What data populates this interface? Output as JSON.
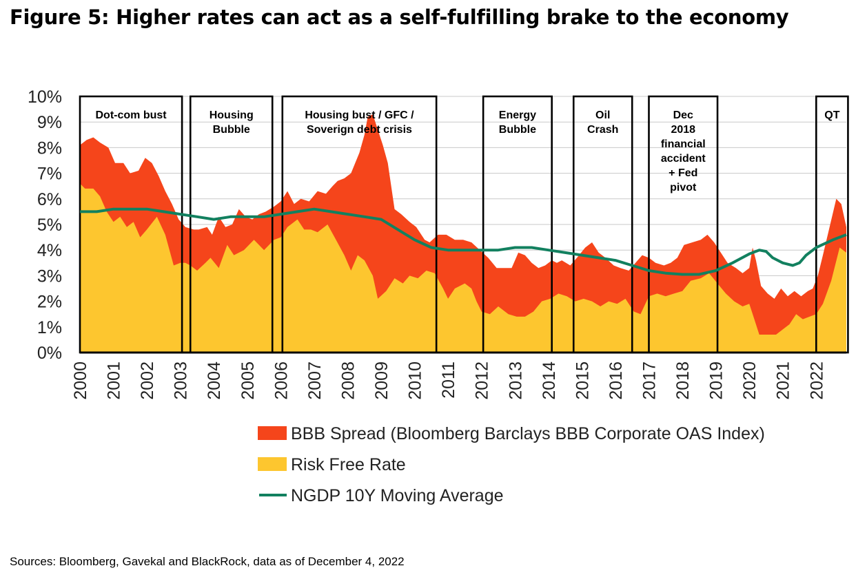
{
  "title": "Figure 5: Higher rates can act as a self-fulfilling brake to the economy",
  "sources": "Sources: Bloomberg, Gavekal and BlackRock, data as of December 4, 2022",
  "colors": {
    "spread": "#F5451B",
    "risk_free": "#FDC62F",
    "ngdp": "#12805F",
    "grid": "#c8c8c8",
    "box": "#000000"
  },
  "chart_data": {
    "type": "area",
    "title": "Figure 5: Higher rates can act as a self-fulfilling brake to the economy",
    "ylim": [
      0,
      10
    ],
    "xlim": [
      2000,
      2022.9
    ],
    "y_ticks": [
      {
        "value": 0,
        "label": "0%"
      },
      {
        "value": 1,
        "label": "1%"
      },
      {
        "value": 2,
        "label": "2%"
      },
      {
        "value": 3,
        "label": "3%"
      },
      {
        "value": 4,
        "label": "4%"
      },
      {
        "value": 5,
        "label": "5%"
      },
      {
        "value": 6,
        "label": "6%"
      },
      {
        "value": 7,
        "label": "7%"
      },
      {
        "value": 8,
        "label": "8%"
      },
      {
        "value": 9,
        "label": "9%"
      },
      {
        "value": 10,
        "label": "10%"
      }
    ],
    "x_ticks": [
      {
        "value": 2000,
        "label": "2000"
      },
      {
        "value": 2001,
        "label": "2001"
      },
      {
        "value": 2002,
        "label": "2002"
      },
      {
        "value": 2003,
        "label": "2003"
      },
      {
        "value": 2004,
        "label": "2004"
      },
      {
        "value": 2005,
        "label": "2005"
      },
      {
        "value": 2006,
        "label": "2006"
      },
      {
        "value": 2007,
        "label": "2007"
      },
      {
        "value": 2008,
        "label": "2008"
      },
      {
        "value": 2009,
        "label": "2009"
      },
      {
        "value": 2010,
        "label": "2010"
      },
      {
        "value": 2011,
        "label": "2011"
      },
      {
        "value": 2012,
        "label": "2012"
      },
      {
        "value": 2013,
        "label": "2013"
      },
      {
        "value": 2014,
        "label": "2014"
      },
      {
        "value": 2015,
        "label": "2015"
      },
      {
        "value": 2016,
        "label": "2016"
      },
      {
        "value": 2017,
        "label": "2017"
      },
      {
        "value": 2018,
        "label": "2018"
      },
      {
        "value": 2019,
        "label": "2019"
      },
      {
        "value": 2020,
        "label": "2020"
      },
      {
        "value": 2021,
        "label": "2021"
      },
      {
        "value": 2022,
        "label": "2022"
      }
    ],
    "legend": [
      {
        "key": "spread",
        "label": "BBB Spread (Bloomberg Barclays BBB Corporate OAS Index)",
        "kind": "area"
      },
      {
        "key": "risk_free",
        "label": "Risk Free Rate",
        "kind": "area"
      },
      {
        "key": "ngdp",
        "label": "NGDP 10Y Moving Average",
        "kind": "line"
      }
    ],
    "series": {
      "risk_free": [
        [
          2000.0,
          6.6
        ],
        [
          2000.15,
          6.4
        ],
        [
          2000.4,
          6.4
        ],
        [
          2000.6,
          6.1
        ],
        [
          2000.8,
          5.5
        ],
        [
          2001.0,
          5.1
        ],
        [
          2001.2,
          5.3
        ],
        [
          2001.4,
          4.9
        ],
        [
          2001.6,
          5.1
        ],
        [
          2001.8,
          4.5
        ],
        [
          2002.0,
          4.8
        ],
        [
          2002.3,
          5.3
        ],
        [
          2002.55,
          4.6
        ],
        [
          2002.8,
          3.4
        ],
        [
          2003.0,
          3.5
        ],
        [
          2003.15,
          3.5
        ],
        [
          2003.3,
          3.4
        ],
        [
          2003.5,
          3.2
        ],
        [
          2003.75,
          3.5
        ],
        [
          2003.9,
          3.7
        ],
        [
          2004.15,
          3.3
        ],
        [
          2004.4,
          4.2
        ],
        [
          2004.6,
          3.8
        ],
        [
          2004.9,
          4.0
        ],
        [
          2005.2,
          4.4
        ],
        [
          2005.5,
          4.0
        ],
        [
          2005.8,
          4.4
        ],
        [
          2006.0,
          4.5
        ],
        [
          2006.2,
          4.9
        ],
        [
          2006.5,
          5.2
        ],
        [
          2006.7,
          4.8
        ],
        [
          2006.9,
          4.8
        ],
        [
          2007.1,
          4.7
        ],
        [
          2007.4,
          5.0
        ],
        [
          2007.65,
          4.4
        ],
        [
          2007.9,
          3.8
        ],
        [
          2008.1,
          3.2
        ],
        [
          2008.3,
          3.8
        ],
        [
          2008.5,
          3.6
        ],
        [
          2008.75,
          3.0
        ],
        [
          2008.9,
          2.1
        ],
        [
          2009.15,
          2.4
        ],
        [
          2009.4,
          2.9
        ],
        [
          2009.65,
          2.7
        ],
        [
          2009.85,
          3.0
        ],
        [
          2010.1,
          2.9
        ],
        [
          2010.35,
          3.2
        ],
        [
          2010.6,
          3.1
        ],
        [
          2010.85,
          2.5
        ],
        [
          2011.0,
          2.1
        ],
        [
          2011.2,
          2.5
        ],
        [
          2011.5,
          2.7
        ],
        [
          2011.7,
          2.5
        ],
        [
          2011.85,
          2.0
        ],
        [
          2012.0,
          1.6
        ],
        [
          2012.25,
          1.5
        ],
        [
          2012.5,
          1.8
        ],
        [
          2012.8,
          1.5
        ],
        [
          2013.05,
          1.4
        ],
        [
          2013.3,
          1.4
        ],
        [
          2013.55,
          1.6
        ],
        [
          2013.8,
          2.0
        ],
        [
          2014.05,
          2.1
        ],
        [
          2014.3,
          2.3
        ],
        [
          2014.55,
          2.2
        ],
        [
          2014.8,
          2.0
        ],
        [
          2015.05,
          2.1
        ],
        [
          2015.3,
          2.0
        ],
        [
          2015.55,
          1.8
        ],
        [
          2015.8,
          2.0
        ],
        [
          2016.05,
          1.9
        ],
        [
          2016.3,
          2.1
        ],
        [
          2016.55,
          1.6
        ],
        [
          2016.75,
          1.5
        ],
        [
          2017.0,
          2.2
        ],
        [
          2017.25,
          2.3
        ],
        [
          2017.5,
          2.2
        ],
        [
          2017.75,
          2.3
        ],
        [
          2018.0,
          2.4
        ],
        [
          2018.25,
          2.8
        ],
        [
          2018.55,
          2.9
        ],
        [
          2018.8,
          3.1
        ],
        [
          2019.05,
          2.7
        ],
        [
          2019.3,
          2.3
        ],
        [
          2019.55,
          2.0
        ],
        [
          2019.8,
          1.8
        ],
        [
          2020.0,
          1.9
        ],
        [
          2020.15,
          1.3
        ],
        [
          2020.3,
          0.7
        ],
        [
          2020.55,
          0.7
        ],
        [
          2020.8,
          0.7
        ],
        [
          2021.0,
          0.9
        ],
        [
          2021.2,
          1.1
        ],
        [
          2021.4,
          1.5
        ],
        [
          2021.6,
          1.3
        ],
        [
          2021.8,
          1.4
        ],
        [
          2022.0,
          1.5
        ],
        [
          2022.2,
          1.9
        ],
        [
          2022.45,
          2.8
        ],
        [
          2022.7,
          4.1
        ],
        [
          2022.9,
          3.9
        ]
      ],
      "total_yield": [
        [
          2000.0,
          8.1
        ],
        [
          2000.2,
          8.3
        ],
        [
          2000.4,
          8.4
        ],
        [
          2000.6,
          8.2
        ],
        [
          2000.85,
          8.0
        ],
        [
          2001.05,
          7.4
        ],
        [
          2001.3,
          7.4
        ],
        [
          2001.5,
          7.0
        ],
        [
          2001.75,
          7.1
        ],
        [
          2001.95,
          7.6
        ],
        [
          2002.15,
          7.4
        ],
        [
          2002.35,
          6.9
        ],
        [
          2002.55,
          6.3
        ],
        [
          2002.75,
          5.8
        ],
        [
          2002.95,
          5.2
        ],
        [
          2003.15,
          4.9
        ],
        [
          2003.4,
          4.8
        ],
        [
          2003.55,
          4.8
        ],
        [
          2003.8,
          4.9
        ],
        [
          2003.95,
          4.6
        ],
        [
          2004.15,
          5.3
        ],
        [
          2004.35,
          4.9
        ],
        [
          2004.55,
          5.0
        ],
        [
          2004.75,
          5.6
        ],
        [
          2004.95,
          5.3
        ],
        [
          2005.15,
          5.2
        ],
        [
          2005.35,
          5.4
        ],
        [
          2005.55,
          5.5
        ],
        [
          2005.8,
          5.7
        ],
        [
          2006.0,
          5.9
        ],
        [
          2006.2,
          6.3
        ],
        [
          2006.4,
          5.8
        ],
        [
          2006.6,
          6.0
        ],
        [
          2006.85,
          5.9
        ],
        [
          2007.1,
          6.3
        ],
        [
          2007.35,
          6.2
        ],
        [
          2007.55,
          6.5
        ],
        [
          2007.7,
          6.7
        ],
        [
          2007.9,
          6.8
        ],
        [
          2008.1,
          7.0
        ],
        [
          2008.35,
          7.8
        ],
        [
          2008.5,
          8.5
        ],
        [
          2008.6,
          9.2
        ],
        [
          2008.75,
          9.3
        ],
        [
          2008.9,
          8.7
        ],
        [
          2009.05,
          8.1
        ],
        [
          2009.2,
          7.4
        ],
        [
          2009.4,
          5.6
        ],
        [
          2009.6,
          5.4
        ],
        [
          2009.85,
          5.1
        ],
        [
          2010.05,
          4.9
        ],
        [
          2010.3,
          4.4
        ],
        [
          2010.45,
          4.3
        ],
        [
          2010.7,
          4.6
        ],
        [
          2010.95,
          4.6
        ],
        [
          2011.2,
          4.4
        ],
        [
          2011.45,
          4.4
        ],
        [
          2011.7,
          4.3
        ],
        [
          2011.95,
          4.0
        ],
        [
          2012.2,
          3.7
        ],
        [
          2012.45,
          3.3
        ],
        [
          2012.7,
          3.3
        ],
        [
          2012.9,
          3.3
        ],
        [
          2013.1,
          3.9
        ],
        [
          2013.3,
          3.8
        ],
        [
          2013.5,
          3.5
        ],
        [
          2013.7,
          3.3
        ],
        [
          2013.9,
          3.4
        ],
        [
          2014.1,
          3.6
        ],
        [
          2014.25,
          3.5
        ],
        [
          2014.4,
          3.6
        ],
        [
          2014.65,
          3.4
        ],
        [
          2014.85,
          3.7
        ],
        [
          2015.1,
          4.1
        ],
        [
          2015.3,
          4.3
        ],
        [
          2015.5,
          3.9
        ],
        [
          2015.7,
          3.7
        ],
        [
          2015.95,
          3.4
        ],
        [
          2016.15,
          3.3
        ],
        [
          2016.4,
          3.2
        ],
        [
          2016.6,
          3.5
        ],
        [
          2016.8,
          3.8
        ],
        [
          2017.0,
          3.7
        ],
        [
          2017.2,
          3.5
        ],
        [
          2017.45,
          3.4
        ],
        [
          2017.65,
          3.5
        ],
        [
          2017.85,
          3.7
        ],
        [
          2018.05,
          4.2
        ],
        [
          2018.3,
          4.3
        ],
        [
          2018.55,
          4.4
        ],
        [
          2018.75,
          4.6
        ],
        [
          2018.95,
          4.3
        ],
        [
          2019.15,
          3.9
        ],
        [
          2019.35,
          3.5
        ],
        [
          2019.6,
          3.3
        ],
        [
          2019.8,
          3.1
        ],
        [
          2020.0,
          3.3
        ],
        [
          2020.1,
          4.1
        ],
        [
          2020.2,
          3.6
        ],
        [
          2020.35,
          2.6
        ],
        [
          2020.55,
          2.3
        ],
        [
          2020.75,
          2.1
        ],
        [
          2020.95,
          2.5
        ],
        [
          2021.15,
          2.2
        ],
        [
          2021.35,
          2.4
        ],
        [
          2021.55,
          2.2
        ],
        [
          2021.75,
          2.4
        ],
        [
          2021.9,
          2.5
        ],
        [
          2022.05,
          3.0
        ],
        [
          2022.2,
          3.8
        ],
        [
          2022.4,
          4.9
        ],
        [
          2022.6,
          6.0
        ],
        [
          2022.75,
          5.8
        ],
        [
          2022.9,
          4.9
        ]
      ],
      "ngdp": [
        [
          2000.0,
          5.5
        ],
        [
          2000.5,
          5.5
        ],
        [
          2001.0,
          5.6
        ],
        [
          2001.5,
          5.6
        ],
        [
          2002.0,
          5.6
        ],
        [
          2002.5,
          5.5
        ],
        [
          2003.0,
          5.4
        ],
        [
          2003.5,
          5.3
        ],
        [
          2004.0,
          5.2
        ],
        [
          2004.5,
          5.3
        ],
        [
          2005.0,
          5.3
        ],
        [
          2005.5,
          5.3
        ],
        [
          2006.0,
          5.4
        ],
        [
          2006.5,
          5.5
        ],
        [
          2007.0,
          5.6
        ],
        [
          2007.5,
          5.5
        ],
        [
          2008.0,
          5.4
        ],
        [
          2008.5,
          5.3
        ],
        [
          2009.0,
          5.2
        ],
        [
          2009.5,
          4.8
        ],
        [
          2010.0,
          4.4
        ],
        [
          2010.5,
          4.1
        ],
        [
          2011.0,
          4.0
        ],
        [
          2011.5,
          4.0
        ],
        [
          2012.0,
          4.0
        ],
        [
          2012.5,
          4.0
        ],
        [
          2013.0,
          4.1
        ],
        [
          2013.5,
          4.1
        ],
        [
          2014.0,
          4.0
        ],
        [
          2014.5,
          3.9
        ],
        [
          2015.0,
          3.8
        ],
        [
          2015.5,
          3.7
        ],
        [
          2016.0,
          3.6
        ],
        [
          2016.5,
          3.4
        ],
        [
          2017.0,
          3.2
        ],
        [
          2017.5,
          3.1
        ],
        [
          2018.0,
          3.05
        ],
        [
          2018.5,
          3.05
        ],
        [
          2019.0,
          3.2
        ],
        [
          2019.5,
          3.5
        ],
        [
          2020.0,
          3.85
        ],
        [
          2020.3,
          4.0
        ],
        [
          2020.5,
          3.95
        ],
        [
          2020.7,
          3.7
        ],
        [
          2021.0,
          3.5
        ],
        [
          2021.3,
          3.4
        ],
        [
          2021.5,
          3.5
        ],
        [
          2021.7,
          3.8
        ],
        [
          2022.0,
          4.1
        ],
        [
          2022.5,
          4.4
        ],
        [
          2022.9,
          4.6
        ]
      ]
    },
    "annotations": [
      {
        "start": 2000.0,
        "end": 2003.05,
        "label": "Dot-com bust"
      },
      {
        "start": 2003.3,
        "end": 2005.75,
        "label": "Housing\nBubble"
      },
      {
        "start": 2006.05,
        "end": 2010.65,
        "label": "Housing bust / GFC /\nSoverign debt crisis"
      },
      {
        "start": 2012.05,
        "end": 2014.1,
        "label": "Energy\nBubble"
      },
      {
        "start": 2014.75,
        "end": 2016.5,
        "label": "Oil\nCrash"
      },
      {
        "start": 2017.0,
        "end": 2019.05,
        "label": "Dec\n2018\nfinancial\naccident\n+ Fed\npivot"
      },
      {
        "start": 2022.0,
        "end": 2022.95,
        "label": "QT"
      }
    ]
  }
}
